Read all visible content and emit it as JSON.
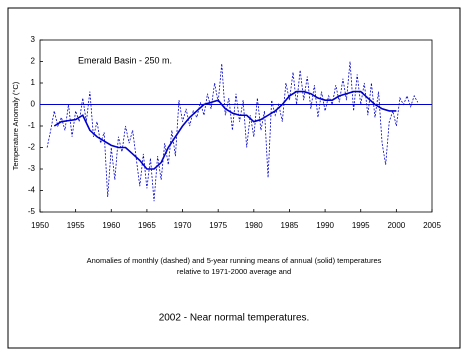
{
  "chart_data": {
    "type": "line",
    "annotation": "Emerald Basin - 250 m.",
    "ylabel": "Temperature Anomaly (°C)",
    "caption": [
      "Anomalies of monthly (dashed) and 5-year running means of annual (solid) temperatures",
      "relative to 1971-2000 average and"
    ],
    "footnote": "2002 - Near normal temperatures.",
    "xlim": [
      1950,
      2005
    ],
    "xticks": [
      1950,
      1955,
      1960,
      1965,
      1970,
      1975,
      1980,
      1985,
      1990,
      1995,
      2000,
      2005
    ],
    "ylim": [
      -5,
      3
    ],
    "yticks": [
      -5,
      -4,
      -3,
      -2,
      -1,
      0,
      1,
      2,
      3
    ],
    "zero_line": true,
    "series": [
      {
        "color": "#0000cc",
        "style": "dashed",
        "x": [
          1951,
          1951.5,
          1952,
          1952.5,
          1953,
          1953.5,
          1954,
          1954.5,
          1955,
          1955.5,
          1956,
          1956.5,
          1957,
          1957.5,
          1958,
          1958.5,
          1959,
          1959.5,
          1960,
          1960.5,
          1961,
          1961.5,
          1962,
          1962.5,
          1963,
          1963.5,
          1964,
          1964.5,
          1965,
          1965.5,
          1966,
          1966.5,
          1967,
          1967.5,
          1968,
          1968.5,
          1969,
          1969.5,
          1970,
          1970.5,
          1971,
          1971.5,
          1972,
          1972.5,
          1973,
          1973.5,
          1974,
          1974.5,
          1975,
          1975.5,
          1976,
          1976.5,
          1977,
          1977.5,
          1978,
          1978.5,
          1979,
          1979.5,
          1980,
          1980.5,
          1981,
          1981.5,
          1982,
          1982.5,
          1983,
          1983.5,
          1984,
          1984.5,
          1985,
          1985.5,
          1986,
          1986.5,
          1987,
          1987.5,
          1988,
          1988.5,
          1989,
          1989.5,
          1990,
          1990.5,
          1991,
          1991.5,
          1992,
          1992.5,
          1993,
          1993.5,
          1994,
          1994.5,
          1995,
          1995.5,
          1996,
          1996.5,
          1997,
          1997.5,
          1998,
          1998.5,
          1999,
          1999.5,
          2000,
          2000.5,
          2001,
          2001.5,
          2002,
          2002.5,
          2003
        ],
        "values": [
          -2.0,
          -1.2,
          -0.3,
          -1.0,
          -0.6,
          -1.2,
          0.0,
          -1.5,
          -0.3,
          -0.8,
          0.3,
          -0.8,
          0.6,
          -1.5,
          -0.8,
          -1.8,
          -1.3,
          -4.3,
          -2.0,
          -3.5,
          -1.5,
          -2.2,
          -1.0,
          -1.8,
          -1.2,
          -2.5,
          -3.8,
          -2.3,
          -3.9,
          -2.5,
          -4.5,
          -2.4,
          -3.5,
          -1.8,
          -2.8,
          -1.2,
          -2.4,
          0.2,
          -0.8,
          -0.2,
          -1.0,
          -0.3,
          -0.6,
          0.1,
          -0.5,
          0.5,
          -0.2,
          1.0,
          0.1,
          1.9,
          -0.5,
          0.3,
          -1.2,
          0.5,
          -0.8,
          0.2,
          -2.0,
          -0.5,
          -1.5,
          0.3,
          -1.2,
          -0.3,
          -3.4,
          0.2,
          -0.5,
          0.0,
          -0.8,
          1.0,
          0.2,
          1.5,
          0.0,
          1.6,
          0.2,
          1.3,
          -0.2,
          0.9,
          -0.6,
          0.6,
          -0.3,
          0.4,
          0.0,
          0.9,
          0.1,
          1.2,
          0.2,
          2.0,
          -0.3,
          1.4,
          0.0,
          1.0,
          -0.5,
          1.0,
          -0.6,
          0.6,
          -1.8,
          -2.8,
          -0.8,
          -0.3,
          -1.0,
          0.3,
          0.0,
          0.4,
          -0.1,
          0.4,
          0.1
        ]
      },
      {
        "color": "#0000cc",
        "style": "solid",
        "x": [
          1952,
          1953,
          1954,
          1955,
          1956,
          1957,
          1958,
          1959,
          1960,
          1961,
          1962,
          1963,
          1964,
          1965,
          1966,
          1967,
          1968,
          1969,
          1970,
          1971,
          1972,
          1973,
          1974,
          1975,
          1976,
          1977,
          1978,
          1979,
          1980,
          1981,
          1982,
          1983,
          1984,
          1985,
          1986,
          1987,
          1988,
          1989,
          1990,
          1991,
          1992,
          1993,
          1994,
          1995,
          1996,
          1997,
          1998,
          1999,
          2000
        ],
        "values": [
          -1.0,
          -0.8,
          -0.75,
          -0.7,
          -0.5,
          -1.2,
          -1.5,
          -1.7,
          -1.9,
          -2.0,
          -2.0,
          -2.3,
          -2.6,
          -3.0,
          -3.0,
          -2.7,
          -2.0,
          -1.5,
          -1.0,
          -0.6,
          -0.3,
          0.0,
          0.1,
          0.2,
          -0.2,
          -0.4,
          -0.5,
          -0.5,
          -0.8,
          -0.7,
          -0.5,
          -0.3,
          0.0,
          0.4,
          0.6,
          0.6,
          0.5,
          0.3,
          0.2,
          0.2,
          0.4,
          0.5,
          0.6,
          0.6,
          0.3,
          0.0,
          -0.2,
          -0.3,
          -0.3
        ]
      }
    ]
  }
}
